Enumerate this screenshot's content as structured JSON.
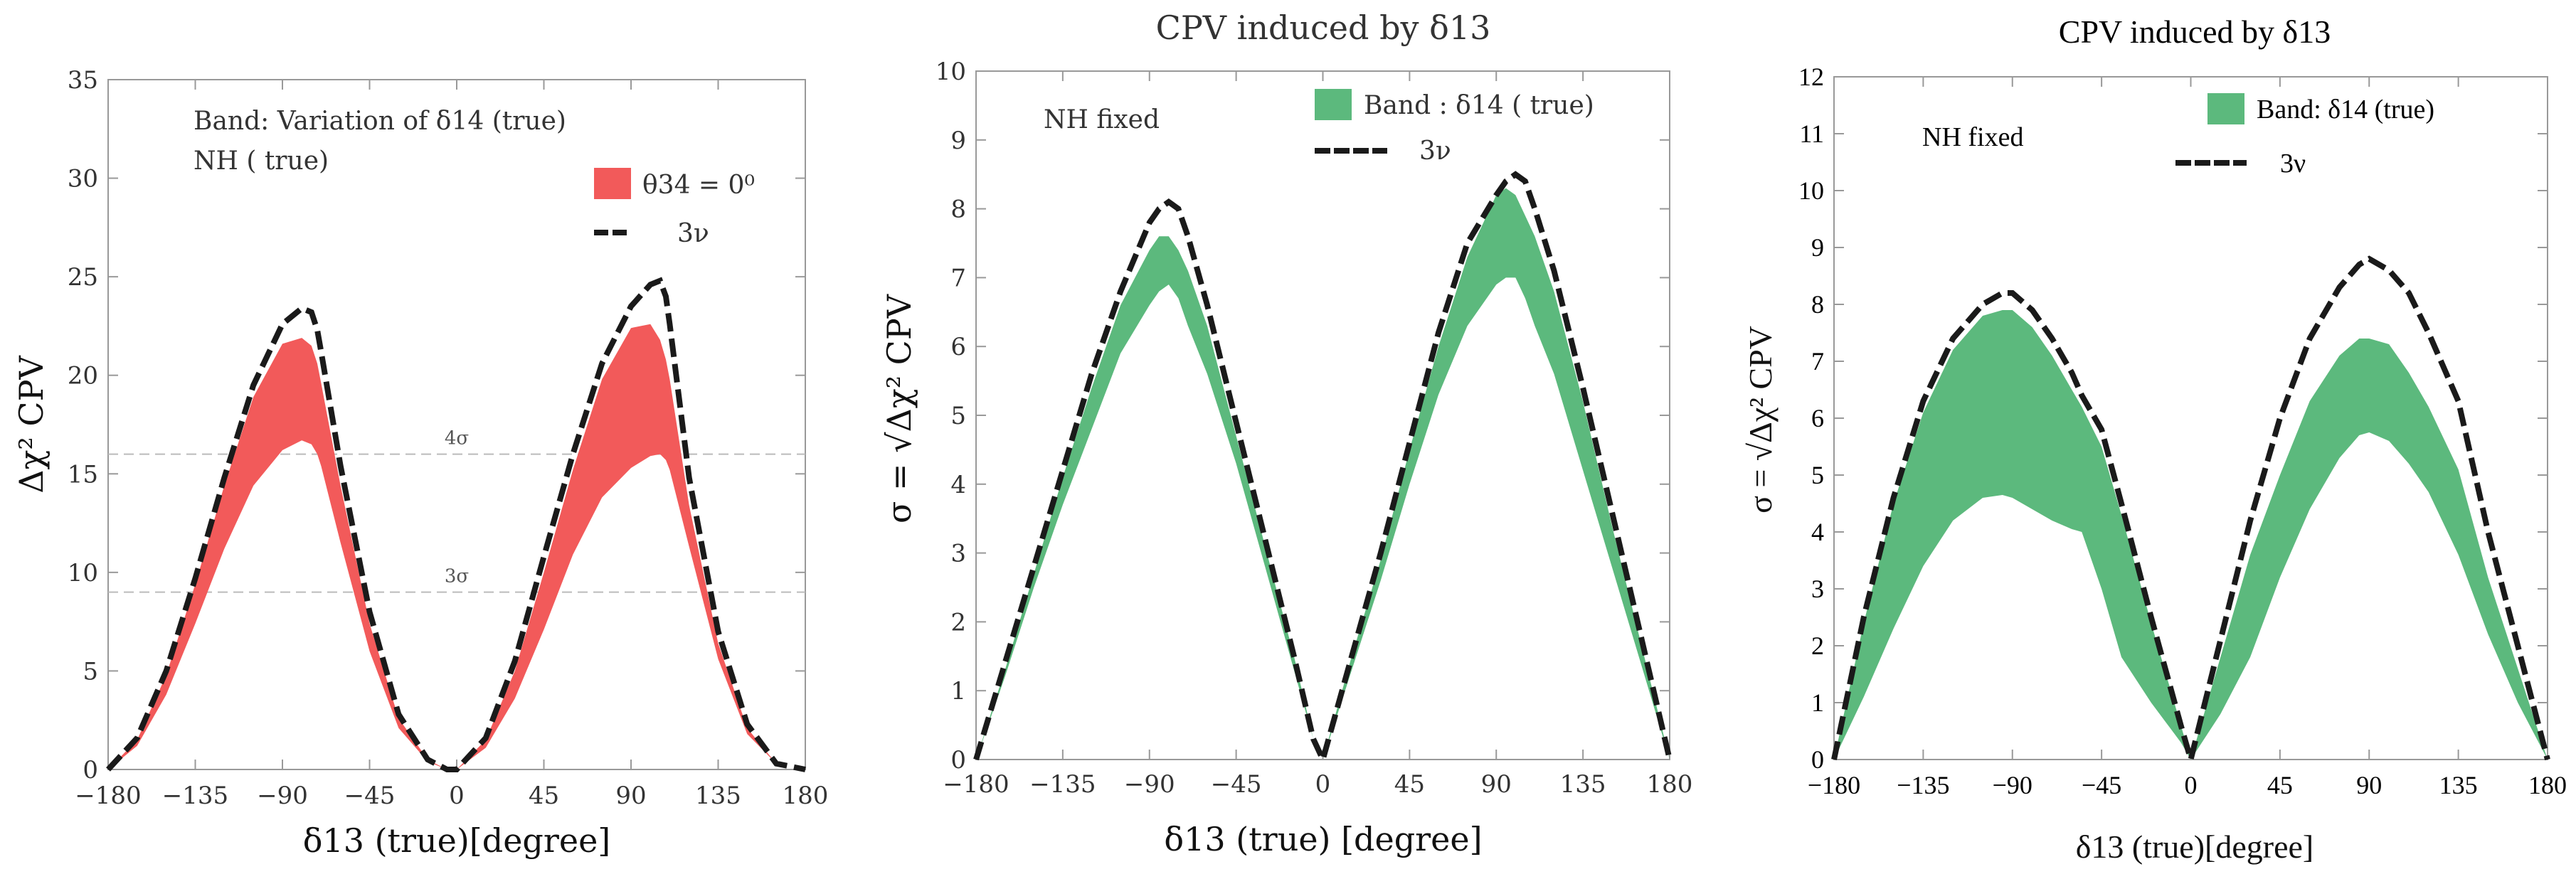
{
  "colors": {
    "red_band": "#f25a5a",
    "green_band": "#5cb97d",
    "dashed": "#1a1a1a",
    "frame": "#999999",
    "sigma_line": "#bbbbbb"
  },
  "chart_data": [
    {
      "type": "area",
      "title": "",
      "xlabel": "δ13 (true)[degree]",
      "ylabel": "Δχ² CPV",
      "xlim": [
        -180,
        180
      ],
      "ylim": [
        0,
        35
      ],
      "xticks": [
        -180,
        -135,
        -90,
        -45,
        0,
        45,
        90,
        135,
        180
      ],
      "yticks": [
        0,
        5,
        10,
        15,
        20,
        25,
        30,
        35
      ],
      "annotations": [
        "Band: Variation of δ14 (true)",
        "NH ( true)"
      ],
      "legend": [
        {
          "label": "θ34 = 0⁰",
          "style": "band"
        },
        {
          "label": "3ν",
          "style": "dashed"
        }
      ],
      "hlines": [
        {
          "y": 16,
          "label": "4σ"
        },
        {
          "y": 9,
          "label": "3σ"
        }
      ],
      "x": [
        -180,
        -165,
        -150,
        -135,
        -120,
        -105,
        -90,
        -80,
        -75,
        -72,
        -70,
        -60,
        -45,
        -30,
        -15,
        -5,
        0,
        15,
        30,
        45,
        60,
        75,
        90,
        100,
        105,
        108,
        110,
        120,
        135,
        150,
        165,
        180
      ],
      "series": [
        {
          "name": "3ν",
          "style": "dashed",
          "values": [
            0,
            1.6,
            5.0,
            9.7,
            14.8,
            19.5,
            22.6,
            23.4,
            23.2,
            22.3,
            21.2,
            15.4,
            8.0,
            2.8,
            0.5,
            0,
            0,
            1.6,
            5.5,
            10.8,
            16.0,
            20.6,
            23.5,
            24.6,
            24.8,
            24.0,
            22.6,
            14.8,
            7.0,
            2.3,
            0.3,
            0
          ]
        },
        {
          "name": "θ34 = 0⁰ upper",
          "style": "band_upper",
          "values": [
            0,
            1.5,
            4.8,
            9.4,
            14.4,
            18.9,
            21.6,
            21.9,
            21.5,
            20.6,
            19.6,
            14.4,
            7.4,
            2.6,
            0.5,
            0,
            0,
            1.5,
            5.0,
            10.0,
            15.2,
            19.8,
            22.4,
            22.6,
            21.8,
            20.8,
            19.8,
            13.4,
            6.4,
            2.1,
            0.3,
            0
          ]
        },
        {
          "name": "θ34 = 0⁰ lower",
          "style": "band_lower",
          "values": [
            0,
            1.2,
            3.8,
            7.4,
            11.2,
            14.4,
            16.2,
            16.7,
            16.5,
            16.0,
            15.4,
            11.5,
            6.0,
            2.1,
            0.4,
            0,
            0,
            1.1,
            3.6,
            7.1,
            10.9,
            13.8,
            15.3,
            15.9,
            16.0,
            15.7,
            15.2,
            11.3,
            5.6,
            1.8,
            0.3,
            0
          ]
        }
      ]
    },
    {
      "type": "area",
      "title": "CPV induced  by δ13",
      "xlabel": "δ13  (true) [degree]",
      "ylabel": "σ = √Δχ² CPV",
      "xlim": [
        -180,
        180
      ],
      "ylim": [
        0,
        10
      ],
      "xticks": [
        -180,
        -135,
        -90,
        -45,
        0,
        45,
        90,
        135,
        180
      ],
      "yticks": [
        0,
        1,
        2,
        3,
        4,
        5,
        6,
        7,
        8,
        9,
        10
      ],
      "annotations": [
        "NH fixed"
      ],
      "legend": [
        {
          "label": "Band : δ14  ( true)",
          "style": "band"
        },
        {
          "label": "3ν",
          "style": "dashed"
        }
      ],
      "x": [
        -180,
        -165,
        -150,
        -135,
        -120,
        -105,
        -90,
        -85,
        -80,
        -75,
        -70,
        -60,
        -45,
        -30,
        -15,
        -5,
        0,
        15,
        30,
        45,
        60,
        75,
        90,
        95,
        100,
        105,
        110,
        120,
        135,
        150,
        165,
        180
      ],
      "series": [
        {
          "name": "3ν",
          "style": "dashed",
          "values": [
            0,
            1.4,
            2.8,
            4.2,
            5.6,
            6.8,
            7.8,
            8.0,
            8.1,
            8.0,
            7.6,
            6.6,
            4.9,
            3.2,
            1.5,
            0.3,
            0,
            1.5,
            3.0,
            4.6,
            6.2,
            7.5,
            8.2,
            8.4,
            8.5,
            8.4,
            8.0,
            7.1,
            5.4,
            3.6,
            1.8,
            0
          ]
        },
        {
          "name": "Band upper",
          "style": "band_upper",
          "values": [
            0,
            1.3,
            2.7,
            4.1,
            5.4,
            6.6,
            7.4,
            7.6,
            7.6,
            7.4,
            7.1,
            6.3,
            4.7,
            3.1,
            1.5,
            0.3,
            0,
            1.5,
            2.9,
            4.5,
            6.0,
            7.3,
            8.2,
            8.3,
            8.2,
            7.9,
            7.6,
            6.8,
            5.2,
            3.4,
            1.7,
            0
          ]
        },
        {
          "name": "Band lower",
          "style": "band_lower",
          "values": [
            0,
            1.2,
            2.5,
            3.7,
            4.8,
            5.9,
            6.6,
            6.8,
            6.9,
            6.7,
            6.3,
            5.6,
            4.3,
            2.8,
            1.3,
            0.3,
            0,
            1.3,
            2.6,
            4.0,
            5.3,
            6.3,
            6.9,
            7.0,
            7.0,
            6.7,
            6.3,
            5.6,
            4.2,
            2.8,
            1.4,
            0
          ]
        }
      ]
    },
    {
      "type": "area",
      "title": "CPV induced by δ13",
      "xlabel": "δ13 (true)[degree]",
      "ylabel": "σ = √Δχ² CPV",
      "xlim": [
        -180,
        180
      ],
      "ylim": [
        0,
        12
      ],
      "xticks": [
        -180,
        -135,
        -90,
        -45,
        0,
        45,
        90,
        135,
        180
      ],
      "yticks": [
        0,
        1,
        2,
        3,
        4,
        5,
        6,
        7,
        8,
        9,
        10,
        11,
        12
      ],
      "annotations": [
        "NH fixed"
      ],
      "legend": [
        {
          "label": "Band: δ14 (true)",
          "style": "band"
        },
        {
          "label": "3ν",
          "style": "dashed"
        }
      ],
      "x": [
        -180,
        -165,
        -150,
        -135,
        -120,
        -105,
        -95,
        -90,
        -80,
        -70,
        -60,
        -55,
        -45,
        -35,
        -20,
        -5,
        0,
        15,
        30,
        45,
        60,
        75,
        85,
        90,
        100,
        110,
        120,
        135,
        150,
        165,
        180
      ],
      "series": [
        {
          "name": "3ν",
          "style": "dashed",
          "values": [
            0,
            2.5,
            4.6,
            6.3,
            7.4,
            8.0,
            8.2,
            8.2,
            7.9,
            7.4,
            6.8,
            6.4,
            5.8,
            4.5,
            2.5,
            0.6,
            0,
            2.1,
            4.2,
            6.0,
            7.4,
            8.3,
            8.7,
            8.8,
            8.6,
            8.2,
            7.5,
            6.3,
            4.0,
            2.0,
            0
          ]
        },
        {
          "name": "Band upper",
          "style": "band_upper",
          "values": [
            0,
            2.4,
            4.5,
            6.1,
            7.2,
            7.8,
            7.9,
            7.9,
            7.6,
            7.1,
            6.5,
            6.2,
            5.5,
            4.3,
            2.4,
            0.6,
            0,
            1.8,
            3.6,
            5.0,
            6.3,
            7.1,
            7.4,
            7.4,
            7.3,
            6.8,
            6.2,
            5.1,
            3.2,
            1.6,
            0
          ]
        },
        {
          "name": "Band lower",
          "style": "band_lower",
          "values": [
            0,
            1.1,
            2.3,
            3.4,
            4.2,
            4.6,
            4.65,
            4.6,
            4.4,
            4.2,
            4.05,
            4.0,
            3.0,
            1.8,
            1.0,
            0.3,
            0,
            0.8,
            1.8,
            3.2,
            4.4,
            5.3,
            5.7,
            5.75,
            5.6,
            5.2,
            4.7,
            3.6,
            2.2,
            1.0,
            0
          ]
        }
      ]
    }
  ]
}
